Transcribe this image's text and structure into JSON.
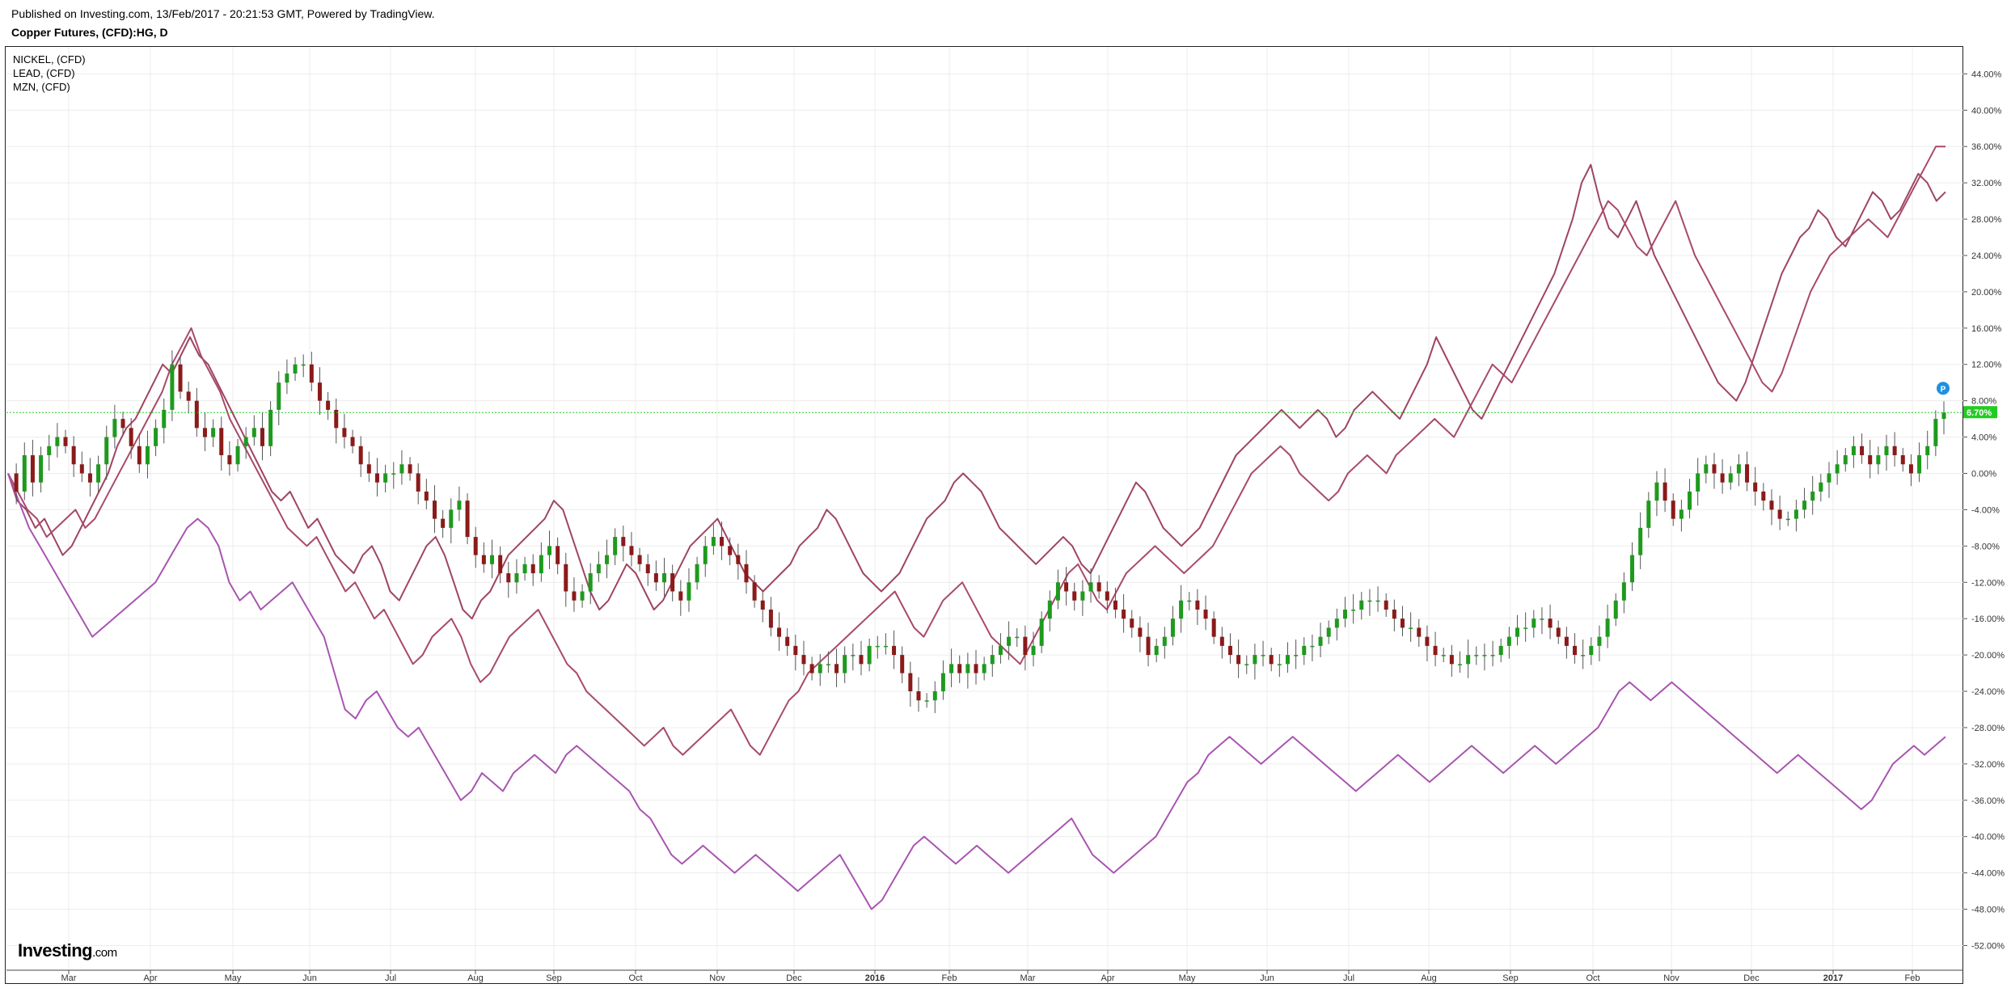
{
  "header": {
    "published": "Published on Investing.com, 13/Feb/2017 - 20:21:53 GMT, Powered by TradingView.",
    "symbol": "Copper Futures, (CFD):HG, D"
  },
  "legend": [
    {
      "name": "NICKEL,  (CFD)"
    },
    {
      "name": "LEAD,  (CFD)"
    },
    {
      "name": "MZN,  (CFD)"
    }
  ],
  "logo": {
    "brand": "Investing",
    "suffix": ".com"
  },
  "colors": {
    "up": "#1e9a1e",
    "down": "#8b1a1a",
    "nickel": "#9e4560",
    "lead": "#a84a6a",
    "mzn": "#a855b0",
    "last": "#22cc22",
    "badge": "#1e90e0"
  },
  "badge": {
    "label": "P"
  },
  "chart_data": {
    "type": "line",
    "title": "Copper Futures, (CFD):HG, D",
    "y_unit": "%",
    "ylim": [
      -54,
      48
    ],
    "y_ticks": [
      "44.00%",
      "40.00%",
      "36.00%",
      "32.00%",
      "28.00%",
      "24.00%",
      "20.00%",
      "16.00%",
      "12.00%",
      "8.00%",
      "4.00%",
      "0.00%",
      "-4.00%",
      "-8.00%",
      "-12.00%",
      "-16.00%",
      "-20.00%",
      "-24.00%",
      "-28.00%",
      "-32.00%",
      "-36.00%",
      "-40.00%",
      "-44.00%",
      "-48.00%",
      "-52.00%"
    ],
    "x_ticks": [
      "Mar",
      "Apr",
      "May",
      "Jun",
      "Jul",
      "Aug",
      "Sep",
      "Oct",
      "Nov",
      "Dec",
      "2016",
      "Feb",
      "Mar",
      "Apr",
      "May",
      "Jun",
      "Jul",
      "Aug",
      "Sep",
      "Oct",
      "Nov",
      "Dec",
      "2017",
      "Feb"
    ],
    "x_ticks_bold": [
      "2016",
      "2017"
    ],
    "last_value_label": "6.70%",
    "last_value": 6.7,
    "grid": true,
    "legend_position": "top-left",
    "copper_candles_close": [
      0,
      -2,
      2,
      -1,
      2,
      3,
      4,
      3,
      1,
      0,
      -1,
      1,
      4,
      6,
      5,
      3,
      1,
      3,
      5,
      7,
      12,
      9,
      8,
      5,
      4,
      5,
      2,
      1,
      3,
      4,
      5,
      3,
      7,
      10,
      11,
      12,
      12,
      10,
      8,
      7,
      5,
      4,
      3,
      1,
      0,
      -1,
      0,
      0,
      1,
      0,
      -2,
      -3,
      -5,
      -6,
      -4,
      -3,
      -7,
      -9,
      -10,
      -9,
      -11,
      -12,
      -11,
      -10,
      -11,
      -9,
      -8,
      -10,
      -13,
      -14,
      -13,
      -11,
      -10,
      -9,
      -7,
      -8,
      -9,
      -10,
      -11,
      -12,
      -11,
      -13,
      -14,
      -12,
      -10,
      -8,
      -7,
      -8,
      -9,
      -10,
      -12,
      -14,
      -15,
      -17,
      -18,
      -19,
      -20,
      -21,
      -22,
      -21,
      -21,
      -22,
      -20,
      -20,
      -21,
      -19,
      -19,
      -19,
      -20,
      -22,
      -24,
      -25,
      -25,
      -24,
      -22,
      -21,
      -22,
      -21,
      -22,
      -21,
      -20,
      -19,
      -18,
      -18,
      -20,
      -19,
      -16,
      -14,
      -12,
      -13,
      -14,
      -13,
      -12,
      -13,
      -14,
      -15,
      -16,
      -17,
      -18,
      -20,
      -19,
      -18,
      -16,
      -14,
      -14,
      -15,
      -16,
      -18,
      -19,
      -20,
      -21,
      -21,
      -20,
      -20,
      -21,
      -21,
      -20,
      -20,
      -19,
      -19,
      -18,
      -17,
      -16,
      -15,
      -15,
      -14,
      -14,
      -14,
      -15,
      -16,
      -17,
      -17,
      -18,
      -19,
      -20,
      -20,
      -21,
      -21,
      -20,
      -20,
      -20,
      -20,
      -19,
      -18,
      -17,
      -17,
      -16,
      -16,
      -17,
      -18,
      -19,
      -20,
      -20,
      -19,
      -18,
      -16,
      -14,
      -12,
      -9,
      -6,
      -3,
      -1,
      -3,
      -5,
      -4,
      -2,
      0,
      1,
      0,
      -1,
      0,
      1,
      -1,
      -2,
      -3,
      -4,
      -5,
      -5,
      -4,
      -3,
      -2,
      -1,
      0,
      1,
      2,
      3,
      2,
      1,
      2,
      3,
      2,
      1,
      0,
      2,
      3,
      6,
      6.7
    ],
    "series": [
      {
        "name": "NICKEL,  (CFD)",
        "values": [
          0,
          -3,
          -4,
          -6,
          -5,
          -7,
          -9,
          -8,
          -6,
          -4,
          -2,
          0,
          3,
          5,
          6,
          8,
          10,
          12,
          11,
          13,
          15,
          13,
          12,
          10,
          8,
          6,
          4,
          2,
          0,
          -2,
          -3,
          -2,
          -4,
          -6,
          -5,
          -7,
          -9,
          -10,
          -11,
          -9,
          -8,
          -10,
          -13,
          -14,
          -12,
          -10,
          -8,
          -7,
          -9,
          -12,
          -15,
          -16,
          -14,
          -13,
          -11,
          -9,
          -8,
          -7,
          -6,
          -5,
          -3,
          -4,
          -7,
          -10,
          -13,
          -15,
          -14,
          -12,
          -10,
          -11,
          -13,
          -15,
          -14,
          -12,
          -10,
          -8,
          -7,
          -6,
          -5,
          -7,
          -9,
          -11,
          -12,
          -13,
          -12,
          -11,
          -10,
          -8,
          -7,
          -6,
          -4,
          -5,
          -7,
          -9,
          -11,
          -12,
          -13,
          -12,
          -11,
          -9,
          -7,
          -5,
          -4,
          -3,
          -1,
          0,
          -1,
          -2,
          -4,
          -6,
          -7,
          -8,
          -9,
          -10,
          -9,
          -8,
          -7,
          -8,
          -10,
          -11,
          -9,
          -7,
          -5,
          -3,
          -1,
          -2,
          -4,
          -6,
          -7,
          -8,
          -7,
          -6,
          -4,
          -2,
          0,
          2,
          3,
          4,
          5,
          6,
          7,
          6,
          5,
          6,
          7,
          6,
          4,
          5,
          7,
          8,
          9,
          8,
          7,
          6,
          8,
          10,
          12,
          15,
          13,
          11,
          9,
          7,
          6,
          8,
          10,
          12,
          14,
          16,
          18,
          20,
          22,
          25,
          28,
          32,
          34,
          30,
          27,
          26,
          28,
          30,
          27,
          24,
          22,
          20,
          18,
          16,
          14,
          12,
          10,
          9,
          8,
          10,
          13,
          16,
          19,
          22,
          24,
          26,
          27,
          29,
          28,
          26,
          25,
          27,
          29,
          31,
          30,
          28,
          29,
          31,
          33,
          32,
          30,
          31
        ],
        "_note": ""
      },
      {
        "name": "LEAD,  (CFD)",
        "values": [
          0,
          -2,
          -4,
          -5,
          -7,
          -6,
          -5,
          -4,
          -6,
          -5,
          -3,
          -1,
          1,
          3,
          5,
          7,
          9,
          12,
          14,
          16,
          13,
          11,
          9,
          6,
          4,
          2,
          0,
          -2,
          -4,
          -6,
          -7,
          -8,
          -7,
          -9,
          -11,
          -13,
          -12,
          -14,
          -16,
          -15,
          -17,
          -19,
          -21,
          -20,
          -18,
          -17,
          -16,
          -18,
          -21,
          -23,
          -22,
          -20,
          -18,
          -17,
          -16,
          -15,
          -17,
          -19,
          -21,
          -22,
          -24,
          -25,
          -26,
          -27,
          -28,
          -29,
          -30,
          -29,
          -28,
          -30,
          -31,
          -30,
          -29,
          -28,
          -27,
          -26,
          -28,
          -30,
          -31,
          -29,
          -27,
          -25,
          -24,
          -22,
          -21,
          -20,
          -19,
          -18,
          -17,
          -16,
          -15,
          -14,
          -13,
          -15,
          -17,
          -18,
          -16,
          -14,
          -13,
          -12,
          -14,
          -16,
          -18,
          -19,
          -20,
          -21,
          -19,
          -17,
          -15,
          -13,
          -11,
          -10,
          -12,
          -14,
          -15,
          -13,
          -11,
          -10,
          -9,
          -8,
          -9,
          -10,
          -11,
          -10,
          -9,
          -8,
          -6,
          -4,
          -2,
          0,
          1,
          2,
          3,
          2,
          0,
          -1,
          -2,
          -3,
          -2,
          0,
          1,
          2,
          1,
          0,
          2,
          3,
          4,
          5,
          6,
          5,
          4,
          6,
          8,
          10,
          12,
          11,
          10,
          12,
          14,
          16,
          18,
          20,
          22,
          24,
          26,
          28,
          30,
          29,
          27,
          25,
          24,
          26,
          28,
          30,
          27,
          24,
          22,
          20,
          18,
          16,
          14,
          12,
          10,
          9,
          11,
          14,
          17,
          20,
          22,
          24,
          25,
          26,
          27,
          28,
          27,
          26,
          28,
          30,
          32,
          34,
          36,
          36
        ],
        "_note": ""
      },
      {
        "name": "MZN,  (CFD)",
        "values": [
          0,
          -3,
          -6,
          -8,
          -10,
          -12,
          -14,
          -16,
          -18,
          -17,
          -16,
          -15,
          -14,
          -13,
          -12,
          -10,
          -8,
          -6,
          -5,
          -6,
          -8,
          -12,
          -14,
          -13,
          -15,
          -14,
          -13,
          -12,
          -14,
          -16,
          -18,
          -22,
          -26,
          -27,
          -25,
          -24,
          -26,
          -28,
          -29,
          -28,
          -30,
          -32,
          -34,
          -36,
          -35,
          -33,
          -34,
          -35,
          -33,
          -32,
          -31,
          -32,
          -33,
          -31,
          -30,
          -31,
          -32,
          -33,
          -34,
          -35,
          -37,
          -38,
          -40,
          -42,
          -43,
          -42,
          -41,
          -42,
          -43,
          -44,
          -43,
          -42,
          -43,
          -44,
          -45,
          -46,
          -45,
          -44,
          -43,
          -42,
          -44,
          -46,
          -48,
          -47,
          -45,
          -43,
          -41,
          -40,
          -41,
          -42,
          -43,
          -42,
          -41,
          -42,
          -43,
          -44,
          -43,
          -42,
          -41,
          -40,
          -39,
          -38,
          -40,
          -42,
          -43,
          -44,
          -43,
          -42,
          -41,
          -40,
          -38,
          -36,
          -34,
          -33,
          -31,
          -30,
          -29,
          -30,
          -31,
          -32,
          -31,
          -30,
          -29,
          -30,
          -31,
          -32,
          -33,
          -34,
          -35,
          -34,
          -33,
          -32,
          -31,
          -32,
          -33,
          -34,
          -33,
          -32,
          -31,
          -30,
          -31,
          -32,
          -33,
          -32,
          -31,
          -30,
          -31,
          -32,
          -31,
          -30,
          -29,
          -28,
          -26,
          -24,
          -23,
          -24,
          -25,
          -24,
          -23,
          -24,
          -25,
          -26,
          -27,
          -28,
          -29,
          -30,
          -31,
          -32,
          -33,
          -32,
          -31,
          -32,
          -33,
          -34,
          -35,
          -36,
          -37,
          -36,
          -34,
          -32,
          -31,
          -30,
          -31,
          -30,
          -29
        ],
        "_note": ""
      }
    ]
  }
}
